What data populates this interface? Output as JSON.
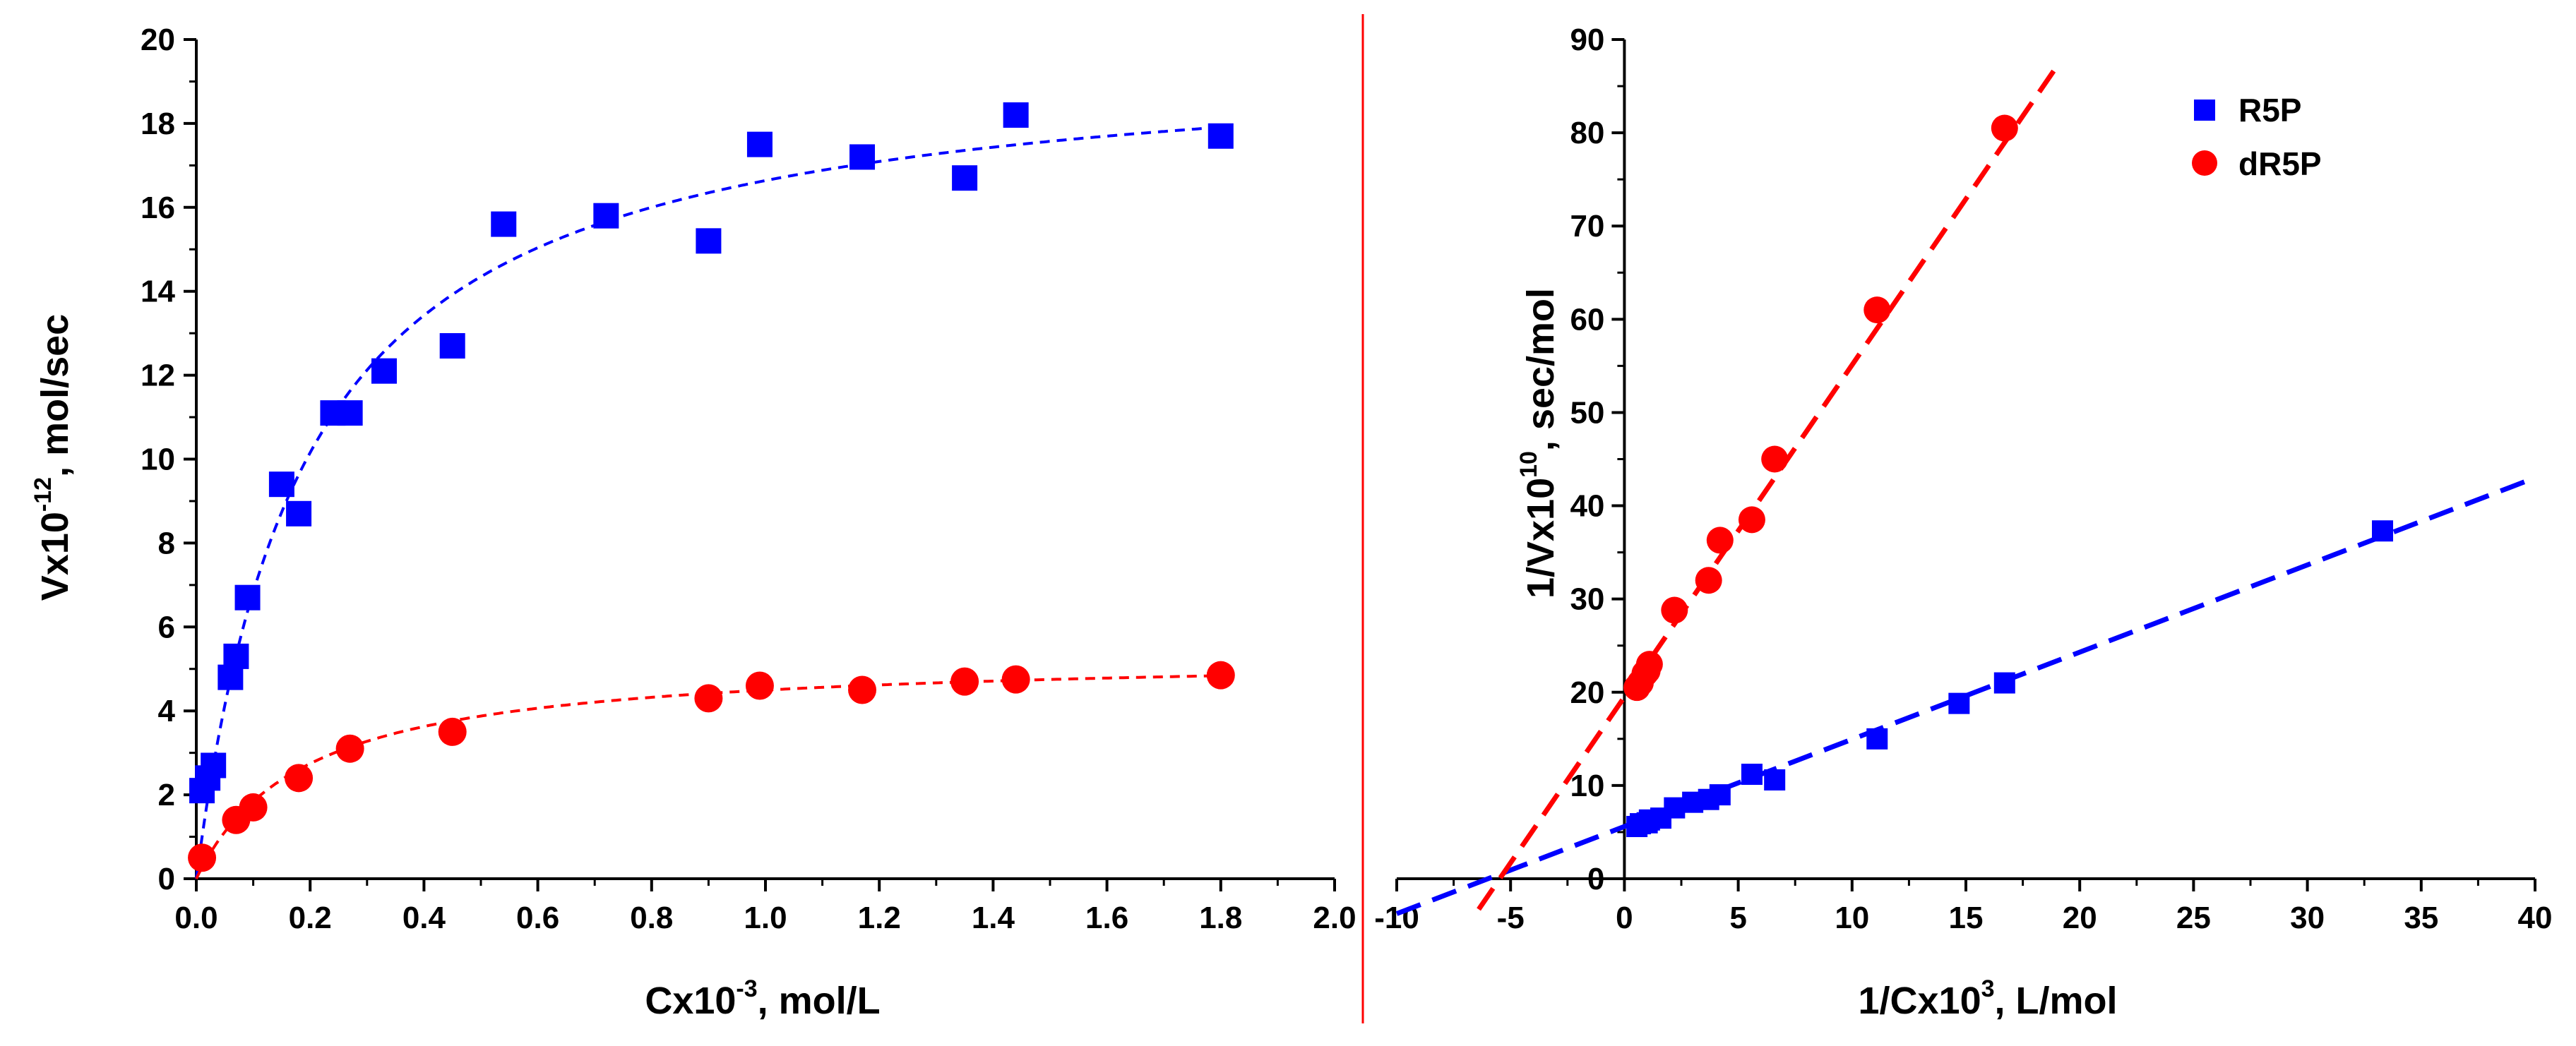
{
  "colors": {
    "R5P": "#0000ff",
    "dR5P": "#ff0000",
    "separator": "#ff0000",
    "axis": "#000000"
  },
  "chart_data": [
    {
      "type": "scatter",
      "title": "",
      "xlabel": {
        "prefix": "Cx10",
        "exponent": "-3",
        "suffix": ", mol/L"
      },
      "ylabel": {
        "prefix": "Vx10",
        "exponent": "-12",
        "suffix": ", mol/sec"
      },
      "xlim": [
        0,
        2.0
      ],
      "ylim": [
        0,
        20
      ],
      "x_ticks": [
        "0.0",
        "0.2",
        "0.4",
        "0.6",
        "0.8",
        "1.0",
        "1.2",
        "1.4",
        "1.6",
        "1.8",
        "2.0"
      ],
      "y_ticks": [
        "0",
        "2",
        "4",
        "6",
        "8",
        "10",
        "12",
        "14",
        "16",
        "18",
        "20"
      ],
      "series": [
        {
          "name": "R5P",
          "marker": "square",
          "color": "#0000ff",
          "x": [
            0.01,
            0.02,
            0.03,
            0.06,
            0.07,
            0.09,
            0.15,
            0.18,
            0.24,
            0.27,
            0.33,
            0.45,
            0.54,
            0.72,
            0.9,
            0.99,
            1.17,
            1.35,
            1.44,
            1.8
          ],
          "y": [
            2.1,
            2.4,
            2.7,
            4.8,
            5.3,
            6.7,
            9.4,
            8.7,
            11.1,
            11.1,
            12.1,
            12.7,
            15.6,
            15.8,
            15.2,
            17.5,
            17.2,
            16.7,
            18.2,
            17.7
          ]
        },
        {
          "name": "dR5P",
          "marker": "circle",
          "color": "#ff0000",
          "x": [
            0.01,
            0.07,
            0.1,
            0.18,
            0.27,
            0.45,
            0.9,
            0.99,
            1.17,
            1.35,
            1.44,
            1.8
          ],
          "y": [
            0.5,
            1.4,
            1.7,
            2.4,
            3.1,
            3.5,
            4.3,
            4.6,
            4.5,
            4.7,
            4.75,
            4.85
          ]
        }
      ],
      "fits": [
        {
          "series": "R5P",
          "model": "michaelis-menten",
          "vmax": 19.8,
          "km": 0.19,
          "style": "short-dash"
        },
        {
          "series": "dR5P",
          "model": "michaelis-menten",
          "vmax": 5.35,
          "km": 0.19,
          "style": "short-dash"
        }
      ]
    },
    {
      "type": "scatter",
      "title": "",
      "xlabel": {
        "prefix": "1/Cx10",
        "exponent": "3",
        "suffix": ", L/mol"
      },
      "ylabel": {
        "prefix": "1/Vx10",
        "exponent": "10",
        "suffix": ", sec/mol"
      },
      "xlim": [
        -10,
        40
      ],
      "ylim": [
        0,
        90
      ],
      "x_ticks": [
        "-10",
        "-5",
        "0",
        "5",
        "10",
        "15",
        "20",
        "25",
        "30",
        "35",
        "40"
      ],
      "y_ticks": [
        "0",
        "10",
        "20",
        "30",
        "40",
        "50",
        "60",
        "70",
        "80",
        "90"
      ],
      "legend": {
        "position": "top-right",
        "entries": [
          "R5P",
          "dR5P"
        ]
      },
      "series": [
        {
          "name": "R5P",
          "marker": "square",
          "color": "#0000ff",
          "x": [
            0.55,
            0.7,
            1.0,
            1.1,
            1.6,
            2.2,
            3.0,
            3.7,
            4.2,
            5.6,
            6.6,
            11.1,
            14.7,
            16.7,
            33.3
          ],
          "y": [
            5.6,
            5.9,
            6.0,
            6.3,
            6.5,
            7.6,
            8.2,
            8.5,
            9.0,
            11.2,
            10.6,
            15.0,
            18.8,
            21.0,
            37.3
          ]
        },
        {
          "name": "dR5P",
          "marker": "circle",
          "color": "#ff0000",
          "x": [
            0.55,
            0.7,
            0.9,
            1.0,
            1.1,
            2.2,
            3.7,
            4.2,
            5.6,
            6.6,
            11.1,
            16.7
          ],
          "y": [
            20.5,
            21.0,
            22.0,
            22.3,
            23.0,
            28.8,
            32.0,
            36.3,
            38.5,
            45.0,
            61.0,
            80.5
          ]
        }
      ],
      "fits": [
        {
          "series": "R5P",
          "model": "linear",
          "slope": 0.935,
          "intercept": 5.6,
          "x_range": [
            -10,
            40
          ],
          "style": "long-dash"
        },
        {
          "series": "dR5P",
          "model": "linear",
          "slope": 3.56,
          "intercept": 19.5,
          "x_range": [
            -6.4,
            19
          ],
          "style": "long-dash"
        }
      ]
    }
  ]
}
